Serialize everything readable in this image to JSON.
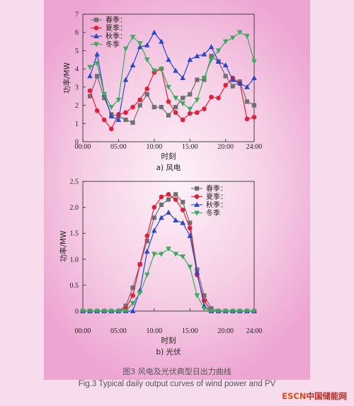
{
  "chart_data": [
    {
      "type": "line",
      "caption": "a) 风电",
      "xlabel": "时刻",
      "ylabel": "功率/MW",
      "xlim": [
        0,
        24
      ],
      "ylim": [
        0,
        7
      ],
      "xticks": [
        "00:00",
        "05:00",
        "10:00",
        "15:00",
        "20:00",
        "24:00"
      ],
      "yticks": [
        "0",
        "1",
        "2",
        "3",
        "4",
        "5",
        "6",
        "7"
      ],
      "legend_position": "top-left",
      "x": [
        1,
        2,
        3,
        4,
        5,
        6,
        7,
        8,
        9,
        10,
        11,
        12,
        13,
        14,
        15,
        16,
        17,
        18,
        19,
        20,
        21,
        22,
        23,
        24
      ],
      "series": [
        {
          "name": "春季：",
          "color": "#707070",
          "marker": "square",
          "values": [
            2.5,
            3.6,
            2.4,
            1.5,
            1.4,
            1.2,
            1.05,
            2.0,
            2.6,
            1.9,
            1.9,
            1.45,
            1.9,
            2.4,
            2.6,
            3.4,
            3.4,
            4.7,
            4.4,
            3.6,
            3.05,
            3.3,
            2.2,
            2.0
          ]
        },
        {
          "name": "夏季：",
          "color": "#e0203a",
          "marker": "circle",
          "values": [
            2.8,
            1.7,
            1.2,
            0.7,
            1.5,
            1.6,
            1.9,
            2.3,
            2.9,
            3.8,
            4.0,
            2.2,
            1.6,
            1.2,
            1.55,
            1.6,
            1.8,
            2.45,
            2.4,
            3.1,
            3.5,
            3.2,
            1.25,
            1.35
          ]
        },
        {
          "name": "秋季：",
          "color": "#2848c8",
          "marker": "triangle",
          "values": [
            3.6,
            4.8,
            2.6,
            1.4,
            1.2,
            3.4,
            4.2,
            5.2,
            5.3,
            6.0,
            5.5,
            4.5,
            3.9,
            3.5,
            4.5,
            4.7,
            4.8,
            5.2,
            4.4,
            4.2,
            3.4,
            3.2,
            3.0,
            3.5
          ]
        },
        {
          "name": "冬季",
          "color": "#3aaa5c",
          "marker": "triangle-down",
          "values": [
            4.1,
            4.3,
            2.6,
            1.9,
            2.3,
            5.1,
            5.75,
            5.4,
            4.5,
            3.9,
            4.0,
            3.0,
            2.4,
            2.1,
            1.8,
            2.3,
            3.5,
            4.5,
            5.0,
            5.5,
            5.7,
            6.0,
            5.8,
            4.4
          ]
        }
      ]
    },
    {
      "type": "line",
      "caption": "b) 光伏",
      "xlabel": "时刻",
      "ylabel": "功率/MW",
      "xlim": [
        0,
        24
      ],
      "ylim": [
        0,
        2.5
      ],
      "xticks": [
        "00:00",
        "05:00",
        "10:00",
        "15:00",
        "20:00",
        "24:00"
      ],
      "yticks": [
        "0",
        "0.5",
        "1.0",
        "1.5",
        "2.0",
        "2.5"
      ],
      "legend_position": "top-right",
      "x": [
        0,
        1,
        2,
        3,
        4,
        5,
        6,
        7,
        8,
        9,
        10,
        11,
        12,
        13,
        14,
        15,
        16,
        17,
        18,
        19,
        20,
        21,
        22,
        23,
        24
      ],
      "series": [
        {
          "name": "春季：",
          "color": "#707070",
          "marker": "square",
          "values": [
            0,
            0,
            0,
            0,
            0,
            0,
            0.1,
            0.45,
            0.9,
            1.35,
            1.8,
            2.05,
            2.15,
            2.25,
            2.1,
            1.7,
            0.8,
            0.3,
            0.05,
            0,
            0,
            0,
            0,
            0,
            0
          ]
        },
        {
          "name": "夏季：",
          "color": "#e0203a",
          "marker": "circle",
          "values": [
            0,
            0,
            0,
            0,
            0,
            0,
            0.05,
            0.3,
            0.9,
            1.45,
            2.0,
            2.2,
            2.25,
            2.15,
            1.95,
            1.6,
            0.7,
            0.2,
            0,
            0,
            0,
            0,
            0,
            0,
            0
          ]
        },
        {
          "name": "秋季：",
          "color": "#2848c8",
          "marker": "triangle",
          "values": [
            0,
            0,
            0,
            0,
            0,
            0,
            0,
            0,
            0.4,
            1.15,
            1.55,
            1.8,
            1.9,
            1.75,
            1.7,
            1.45,
            0.75,
            0.1,
            0,
            0,
            0,
            0,
            0,
            0,
            0
          ]
        },
        {
          "name": "冬季",
          "color": "#3aaa5c",
          "marker": "triangle-down",
          "values": [
            0,
            0,
            0,
            0,
            0,
            0,
            0,
            0.15,
            0.35,
            0.7,
            1.1,
            1.1,
            1.2,
            1.1,
            1.05,
            0.85,
            0.3,
            0.05,
            0,
            0,
            0,
            0,
            0,
            0,
            0
          ]
        }
      ]
    }
  ],
  "captions": {
    "cn": "图3  风电及光伏典型日出力曲线",
    "en": "Fig.3  Typical daily output curves of wind power and PV"
  },
  "watermark": {
    "part1": "ESCN",
    "part2": "中国储能网"
  }
}
